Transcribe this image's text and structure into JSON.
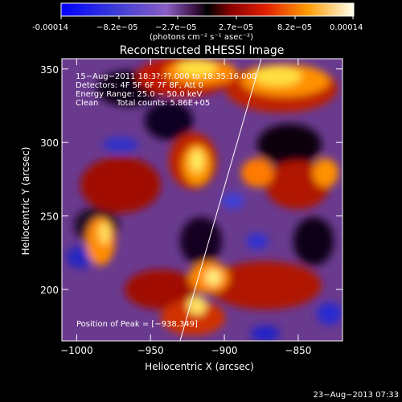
{
  "colorbar": {
    "ticks": [
      "-0.00014",
      "−8.2e−05",
      "−2.7e−05",
      "2.7e−05",
      "8.2e−05",
      "0.00014"
    ],
    "unit_label": "(photons cm⁻² s⁻¹ asec⁻²)",
    "range": [
      -0.00014,
      0.00014
    ]
  },
  "chart_data": {
    "type": "heatmap",
    "title": "Reconstructed RHESSI Image",
    "xlabel": "Heliocentric X (arcsec)",
    "ylabel": "Heliocentric Y (arcsec)",
    "xlim": [
      -1010,
      -820
    ],
    "ylim": [
      165,
      357
    ],
    "xticks": [
      -1000,
      -950,
      -900,
      -850
    ],
    "yticks": [
      200,
      250,
      300,
      350
    ],
    "xtick_labels": [
      "−1000",
      "−950",
      "−900",
      "−850"
    ],
    "ytick_labels": [
      "200",
      "250",
      "300",
      "350"
    ],
    "limb_line": [
      [
        -930,
        165
      ],
      [
        -875,
        357
      ]
    ],
    "annotations": [
      "15−Aug−2011 18:3?:??.000 to 18:35:16.000",
      "Detectors: 4F 5F 6F 7F 8F, Att 0",
      "Energy Range: 25.0 − 50.0 keV",
      "Clean",
      "Total counts: 5.86E+05"
    ],
    "peak_label": "Position of Peak = [−938,349]",
    "peak": [
      -938,
      349
    ]
  },
  "footer": {
    "date": "23−Aug−2013 07:33"
  }
}
